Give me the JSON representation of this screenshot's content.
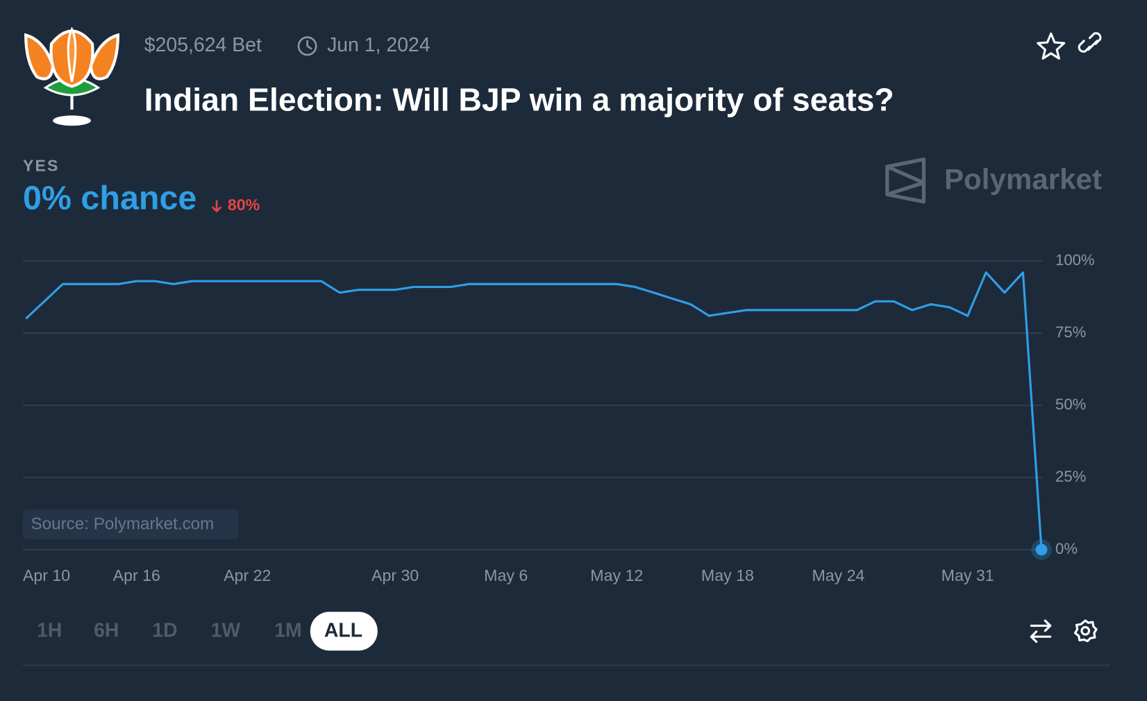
{
  "header": {
    "volume": "$205,624 Bet",
    "date": "Jun 1, 2024",
    "title": "Indian Election: Will BJP win a majority of seats?"
  },
  "outcome": {
    "label": "YES",
    "chance": "0% chance",
    "change": "80%"
  },
  "brand": "Polymarket",
  "source": "Source: Polymarket.com",
  "ranges": [
    "1H",
    "6H",
    "1D",
    "1W",
    "1M",
    "ALL"
  ],
  "selected_range": "ALL",
  "chart_data": {
    "type": "line",
    "color": "#2e9fe6",
    "grid": true,
    "categories": [
      "Apr 10",
      null,
      null,
      null,
      null,
      null,
      "Apr 16",
      null,
      null,
      null,
      null,
      null,
      "Apr 22",
      null,
      null,
      null,
      null,
      null,
      null,
      null,
      "Apr 30",
      null,
      null,
      null,
      null,
      null,
      "May 6",
      null,
      null,
      null,
      null,
      null,
      "May 12",
      null,
      null,
      null,
      null,
      null,
      "May 18",
      null,
      null,
      null,
      null,
      null,
      "May 24",
      null,
      null,
      null,
      null,
      null,
      null,
      "May 31",
      null,
      null,
      null,
      null
    ],
    "values": [
      80,
      86,
      92,
      92,
      92,
      92,
      93,
      93,
      92,
      93,
      93,
      93,
      93,
      93,
      93,
      93,
      93,
      89,
      90,
      90,
      90,
      91,
      91,
      91,
      92,
      92,
      92,
      92,
      92,
      92,
      92,
      92,
      92,
      91,
      89,
      87,
      85,
      81,
      82,
      83,
      83,
      83,
      83,
      83,
      83,
      83,
      86,
      86,
      83,
      85,
      84,
      81,
      96,
      89,
      96,
      0
    ],
    "ylim": [
      0,
      100
    ],
    "yticks": [
      {
        "value": 0,
        "label": "0%"
      },
      {
        "value": 25,
        "label": "25%"
      },
      {
        "value": 50,
        "label": "50%"
      },
      {
        "value": 75,
        "label": "75%"
      },
      {
        "value": 100,
        "label": "100%"
      }
    ]
  }
}
